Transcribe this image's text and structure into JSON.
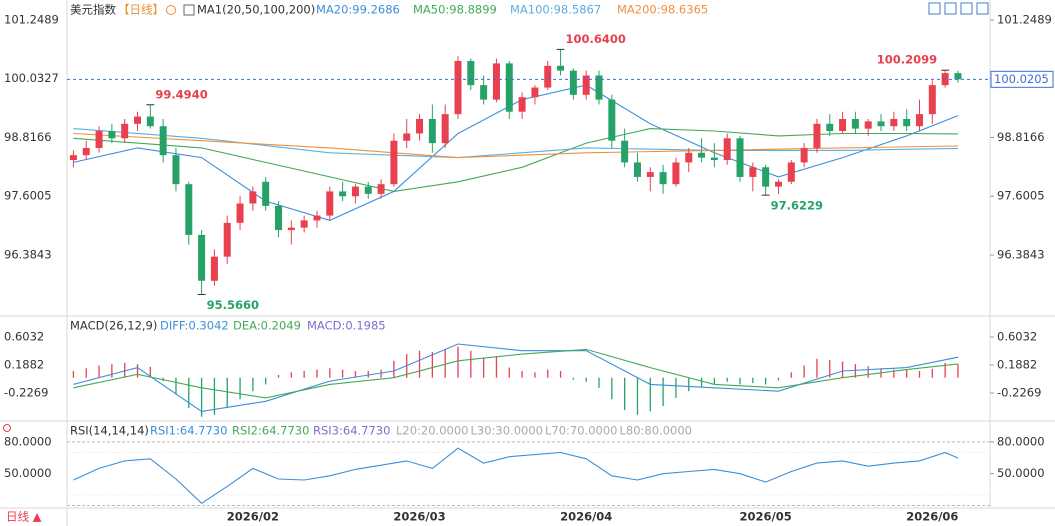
{
  "chart_data": {
    "type": "candlestick",
    "title": "美元指数",
    "period": "【日线】",
    "indicator": "MA1(20,50,100,200)",
    "period_switch": "日线 ▲",
    "categories": [
      null,
      null,
      null,
      null,
      null,
      null,
      null,
      null,
      null,
      null,
      null,
      null,
      null,
      null,
      "2026/02",
      null,
      null,
      null,
      null,
      null,
      null,
      null,
      null,
      null,
      null,
      null,
      null,
      "2026/03",
      null,
      null,
      null,
      null,
      null,
      null,
      null,
      null,
      null,
      null,
      null,
      null,
      "2026/04",
      null,
      null,
      null,
      null,
      null,
      null,
      null,
      null,
      null,
      null,
      null,
      null,
      null,
      "2026/05",
      null,
      null,
      null,
      null,
      null,
      null,
      null,
      null,
      null,
      null,
      null,
      null,
      "2026/06",
      null,
      null
    ],
    "candles": [
      [
        98.35,
        98.55,
        98.2,
        98.45
      ],
      [
        98.45,
        98.75,
        98.35,
        98.6
      ],
      [
        98.6,
        99.05,
        98.5,
        98.95
      ],
      [
        98.95,
        99.1,
        98.7,
        98.8
      ],
      [
        98.8,
        99.2,
        98.7,
        99.1
      ],
      [
        99.1,
        99.35,
        98.95,
        99.25
      ],
      [
        99.25,
        99.494,
        99.0,
        99.05
      ],
      [
        99.05,
        99.2,
        98.3,
        98.45
      ],
      [
        98.45,
        98.6,
        97.7,
        97.85
      ],
      [
        97.85,
        97.9,
        96.6,
        96.8
      ],
      [
        96.8,
        96.9,
        95.566,
        95.85
      ],
      [
        95.85,
        96.5,
        95.75,
        96.35
      ],
      [
        96.35,
        97.2,
        96.2,
        97.05
      ],
      [
        97.05,
        97.6,
        96.9,
        97.45
      ],
      [
        97.45,
        97.8,
        97.3,
        97.7
      ],
      [
        97.9,
        98.0,
        97.3,
        97.4
      ],
      [
        97.4,
        97.5,
        96.75,
        96.9
      ],
      [
        96.9,
        97.1,
        96.6,
        96.95
      ],
      [
        96.95,
        97.2,
        96.85,
        97.1
      ],
      [
        97.1,
        97.3,
        96.95,
        97.2
      ],
      [
        97.2,
        97.8,
        97.1,
        97.7
      ],
      [
        97.7,
        97.9,
        97.5,
        97.6
      ],
      [
        97.6,
        97.85,
        97.45,
        97.8
      ],
      [
        97.8,
        97.9,
        97.55,
        97.65
      ],
      [
        97.65,
        97.95,
        97.55,
        97.85
      ],
      [
        97.85,
        98.9,
        97.8,
        98.75
      ],
      [
        98.75,
        99.2,
        98.6,
        98.9
      ],
      [
        98.9,
        99.3,
        98.75,
        99.2
      ],
      [
        99.2,
        99.5,
        98.5,
        98.7
      ],
      [
        98.7,
        99.5,
        98.6,
        99.3
      ],
      [
        99.3,
        100.5,
        99.2,
        100.4
      ],
      [
        100.4,
        100.45,
        99.8,
        99.9
      ],
      [
        99.9,
        100.1,
        99.5,
        99.6
      ],
      [
        99.6,
        100.45,
        99.55,
        100.35
      ],
      [
        100.35,
        100.4,
        99.2,
        99.35
      ],
      [
        99.35,
        99.75,
        99.2,
        99.65
      ],
      [
        99.65,
        99.9,
        99.5,
        99.85
      ],
      [
        99.85,
        100.4,
        99.8,
        100.3
      ],
      [
        100.3,
        100.64,
        100.1,
        100.2
      ],
      [
        100.2,
        100.25,
        99.6,
        99.7
      ],
      [
        99.7,
        100.2,
        99.6,
        100.1
      ],
      [
        100.1,
        100.2,
        99.5,
        99.6
      ],
      [
        99.6,
        99.7,
        98.6,
        98.75
      ],
      [
        98.75,
        99.0,
        98.2,
        98.3
      ],
      [
        98.3,
        98.5,
        97.9,
        98.0
      ],
      [
        98.0,
        98.2,
        97.7,
        98.1
      ],
      [
        98.1,
        98.25,
        97.65,
        97.85
      ],
      [
        97.85,
        98.4,
        97.8,
        98.3
      ],
      [
        98.3,
        98.6,
        98.1,
        98.5
      ],
      [
        98.5,
        98.8,
        98.3,
        98.4
      ],
      [
        98.4,
        98.7,
        98.2,
        98.35
      ],
      [
        98.35,
        98.9,
        98.25,
        98.8
      ],
      [
        98.8,
        98.85,
        97.9,
        98.0
      ],
      [
        98.0,
        98.3,
        97.7,
        98.2
      ],
      [
        98.2,
        98.25,
        97.6229,
        97.8
      ],
      [
        97.8,
        97.95,
        97.65,
        97.9
      ],
      [
        97.9,
        98.35,
        97.85,
        98.3
      ],
      [
        98.3,
        98.7,
        98.2,
        98.6
      ],
      [
        98.6,
        99.2,
        98.5,
        99.1
      ],
      [
        99.1,
        99.3,
        98.85,
        98.95
      ],
      [
        98.95,
        99.35,
        98.9,
        99.2
      ],
      [
        99.2,
        99.35,
        98.9,
        99.0
      ],
      [
        99.0,
        99.2,
        98.85,
        99.15
      ],
      [
        99.15,
        99.3,
        98.95,
        99.05
      ],
      [
        99.05,
        99.35,
        98.95,
        99.2
      ],
      [
        99.2,
        99.4,
        98.95,
        99.05
      ],
      [
        99.05,
        99.6,
        98.95,
        99.3
      ],
      [
        99.3,
        100.0,
        99.1,
        99.9
      ],
      [
        99.9,
        100.2099,
        99.85,
        100.15
      ],
      [
        100.15,
        100.2,
        99.95,
        100.0205
      ]
    ],
    "up_color": "#e8404f",
    "down_color": "#26a269",
    "ylim": [
      95.142,
      101.497
    ],
    "yticks": [
      101.2489,
      100.0327,
      98.8166,
      97.6005,
      96.3843
    ],
    "last_price": {
      "value": 100.0205,
      "label": "100.0205"
    },
    "annotations": [
      {
        "value": 99.494,
        "label": "99.4940"
      },
      {
        "value": 95.566,
        "label": "95.5660"
      },
      {
        "value": 100.64,
        "label": "100.6400"
      },
      {
        "value": 97.6229,
        "label": "97.6229"
      },
      {
        "value": 100.2099,
        "label": "100.2099"
      }
    ],
    "series": [
      {
        "name": "MA20:99.2686",
        "color": "#3a8fd9",
        "x": [
          0,
          5,
          10,
          15,
          20,
          25,
          30,
          35,
          40,
          45,
          50,
          55,
          60,
          65,
          69
        ],
        "values": [
          98.3,
          98.6,
          98.4,
          97.5,
          97.1,
          97.7,
          98.9,
          99.6,
          99.9,
          99.1,
          98.5,
          98.0,
          98.4,
          98.85,
          99.27
        ]
      },
      {
        "name": "MA50:98.8899",
        "color": "#43a95a",
        "x": [
          0,
          5,
          10,
          15,
          20,
          25,
          30,
          35,
          40,
          45,
          50,
          55,
          60,
          65,
          69
        ],
        "values": [
          98.8,
          98.7,
          98.6,
          98.3,
          98.0,
          97.7,
          97.9,
          98.2,
          98.7,
          99.0,
          98.95,
          98.85,
          98.9,
          98.9,
          98.89
        ]
      },
      {
        "name": "MA100:98.5867",
        "color": "#5aaee0",
        "x": [
          0,
          10,
          20,
          30,
          40,
          50,
          60,
          69
        ],
        "values": [
          99.0,
          98.8,
          98.5,
          98.4,
          98.6,
          98.55,
          98.55,
          98.59
        ]
      },
      {
        "name": "MA200:98.6365",
        "color": "#f0903a",
        "x": [
          0,
          10,
          20,
          30,
          40,
          50,
          60,
          69
        ],
        "values": [
          98.9,
          98.75,
          98.6,
          98.4,
          98.5,
          98.55,
          98.6,
          98.64
        ]
      }
    ],
    "macd": {
      "title": "MACD(26,12,9)",
      "value_label": "MACD:0.1985",
      "ylim": [
        -0.627,
        0.885
      ],
      "yticks": [
        0.6032,
        0.1882,
        -0.2269
      ],
      "hist": [
        0.1,
        0.14,
        0.18,
        0.2,
        0.22,
        0.2,
        0.16,
        -0.05,
        -0.25,
        -0.45,
        -0.58,
        -0.55,
        -0.45,
        -0.32,
        -0.2,
        -0.1,
        0.04,
        0.08,
        0.1,
        0.12,
        0.14,
        0.12,
        0.1,
        0.1,
        0.12,
        0.25,
        0.35,
        0.4,
        0.38,
        0.42,
        0.46,
        0.4,
        0.3,
        0.32,
        0.15,
        0.1,
        0.08,
        0.12,
        0.1,
        -0.03,
        -0.06,
        -0.15,
        -0.32,
        -0.48,
        -0.55,
        -0.5,
        -0.42,
        -0.3,
        -0.2,
        -0.14,
        -0.1,
        -0.06,
        -0.1,
        -0.08,
        -0.1,
        -0.04,
        0.08,
        0.18,
        0.28,
        0.26,
        0.24,
        0.2,
        0.17,
        0.14,
        0.12,
        0.12,
        0.1,
        0.13,
        0.22,
        0.1985
      ],
      "series": [
        {
          "name": "DIFF:0.3042",
          "color": "#3a8fd9",
          "x": [
            0,
            5,
            10,
            15,
            20,
            25,
            30,
            35,
            40,
            45,
            50,
            55,
            60,
            65,
            69
          ],
          "values": [
            -0.1,
            0.15,
            -0.5,
            -0.35,
            -0.05,
            0.1,
            0.5,
            0.4,
            0.4,
            -0.1,
            -0.15,
            -0.2,
            0.1,
            0.15,
            0.3042
          ]
        },
        {
          "name": "DEA:0.2049",
          "color": "#43a95a",
          "x": [
            0,
            5,
            10,
            15,
            20,
            25,
            30,
            35,
            40,
            45,
            50,
            55,
            60,
            65,
            69
          ],
          "values": [
            -0.15,
            0.05,
            -0.15,
            -0.3,
            -0.1,
            0.0,
            0.25,
            0.35,
            0.42,
            0.15,
            -0.1,
            -0.15,
            0.0,
            0.12,
            0.2049
          ]
        }
      ]
    },
    "rsi": {
      "title": "RSI(14,14,14)",
      "ylim": [
        17.6,
        98.75
      ],
      "yticks": [
        {
          "value": 80,
          "label": "80.0000"
        },
        {
          "value": 50,
          "label": "50.0000"
        }
      ],
      "levels": [
        {
          "value": 20,
          "label": "L20:20.0000"
        },
        {
          "value": 30,
          "label": "L30:30.0000"
        },
        {
          "value": 70,
          "label": "L70:70.0000"
        },
        {
          "value": 80,
          "label": "L80:80.0000"
        }
      ],
      "series": [
        {
          "name": "RSI1:64.7730",
          "color": "#3a8fd9",
          "x": [
            0,
            2,
            4,
            6,
            8,
            10,
            12,
            14,
            16,
            18,
            20,
            22,
            24,
            26,
            28,
            30,
            32,
            34,
            36,
            38,
            40,
            42,
            44,
            46,
            48,
            50,
            52,
            54,
            56,
            58,
            60,
            62,
            64,
            66,
            68,
            69
          ],
          "values": [
            44,
            55,
            62,
            64,
            45,
            22,
            38,
            55,
            45,
            44,
            48,
            54,
            58,
            62,
            55,
            74,
            60,
            66,
            68,
            70,
            64,
            48,
            44,
            50,
            52,
            54,
            50,
            42,
            52,
            60,
            62,
            57,
            60,
            62,
            70,
            64.773
          ]
        }
      ],
      "other_labels": [
        "RSI2:64.7730",
        "RSI3:64.7730"
      ]
    }
  }
}
